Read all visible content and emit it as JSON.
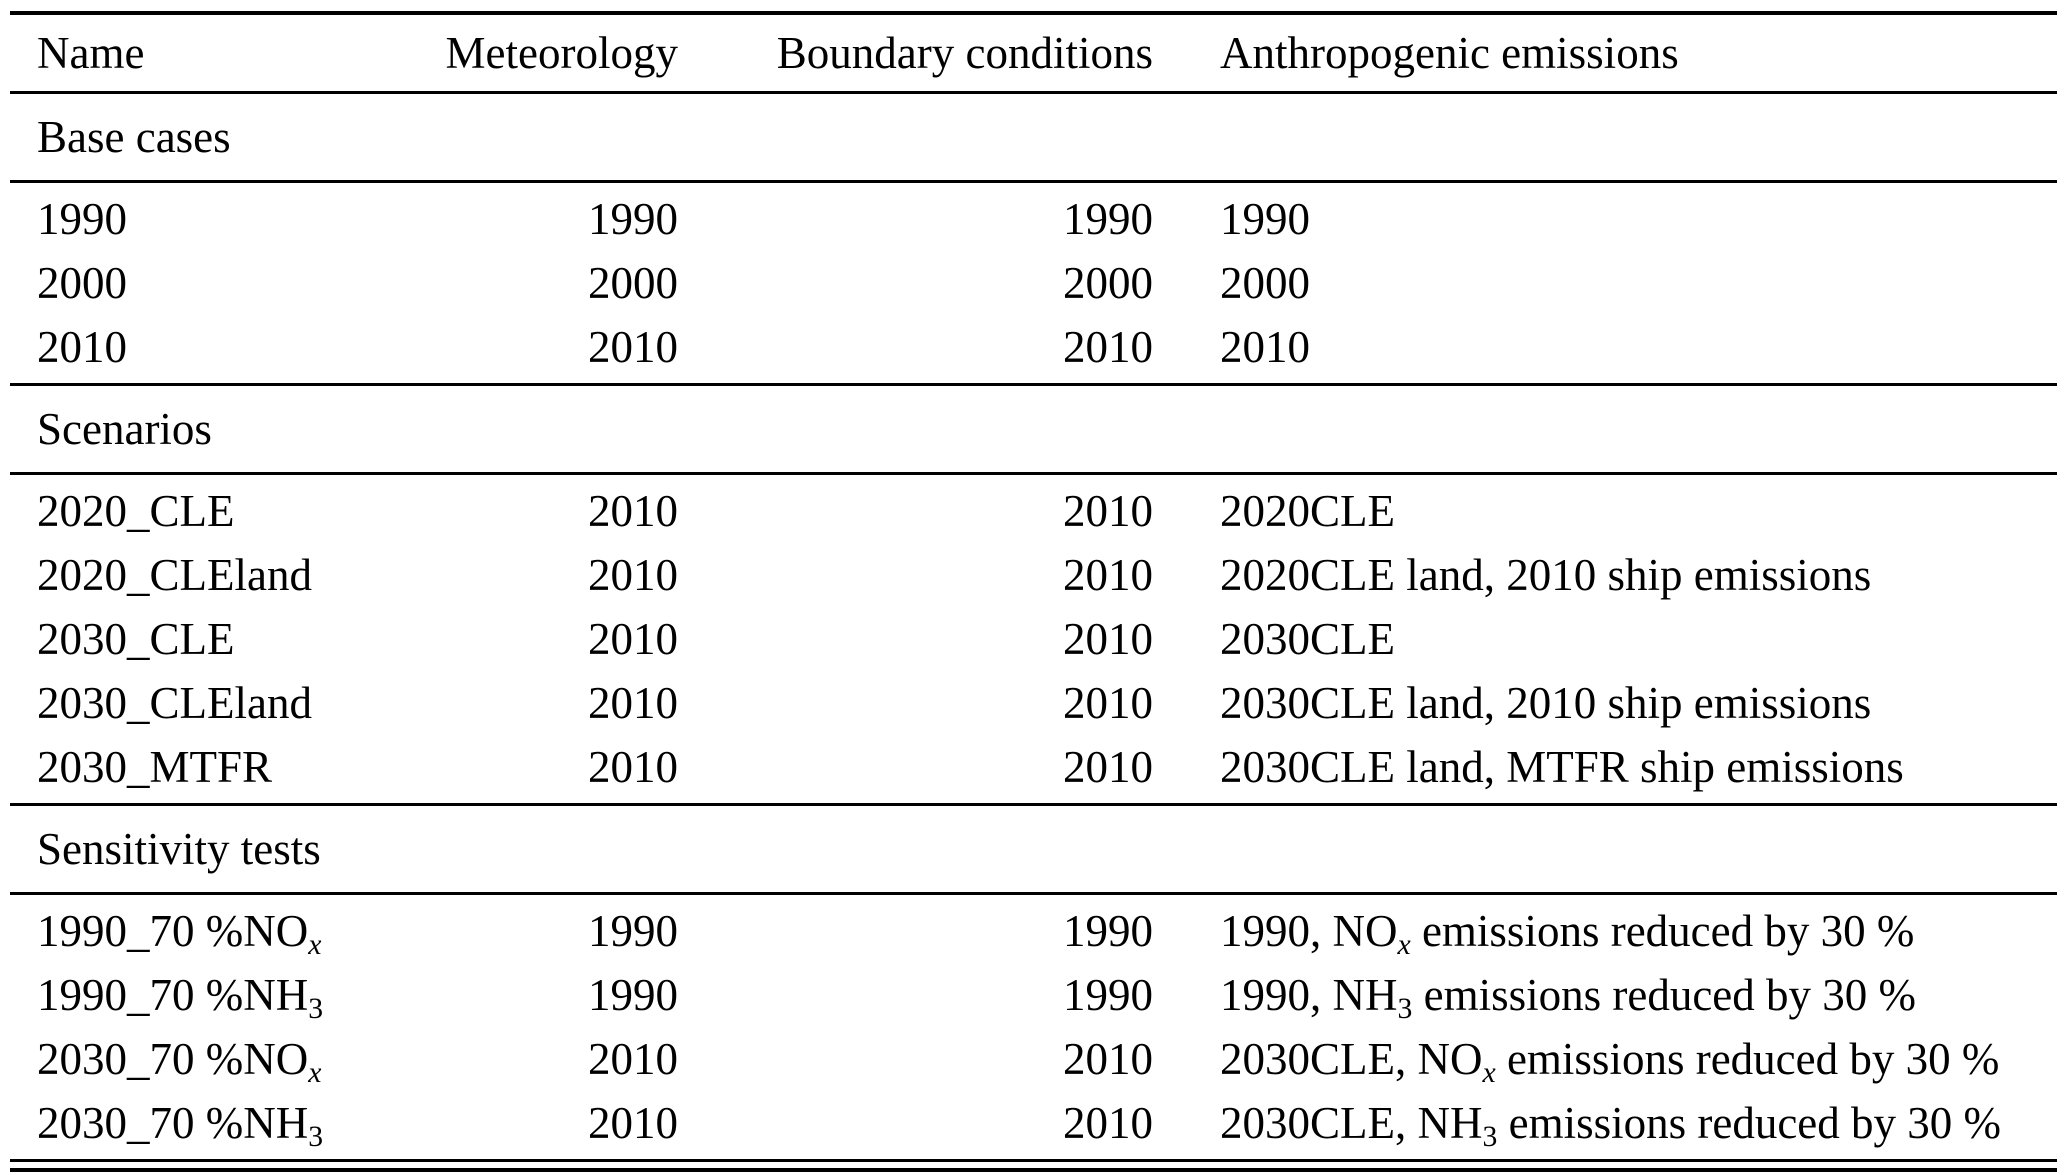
{
  "columns": [
    {
      "label": "Name",
      "align": "left"
    },
    {
      "label": "Meteorology",
      "align": "right"
    },
    {
      "label": "Boundary conditions",
      "align": "right"
    },
    {
      "label": "Anthropogenic emissions",
      "align": "left"
    }
  ],
  "sections": [
    {
      "title": "Base cases",
      "rows": [
        [
          "1990",
          "1990",
          "1990",
          "1990"
        ],
        [
          "2000",
          "2000",
          "2000",
          "2000"
        ],
        [
          "2010",
          "2010",
          "2010",
          "2010"
        ]
      ]
    },
    {
      "title": "Scenarios",
      "rows": [
        [
          "2020_CLE",
          "2010",
          "2010",
          "2020CLE"
        ],
        [
          "2020_CLEland",
          "2010",
          "2010",
          "2020CLE land, 2010 ship emissions"
        ],
        [
          "2030_CLE",
          "2010",
          "2010",
          "2030CLE"
        ],
        [
          "2030_CLEland",
          "2010",
          "2010",
          "2030CLE land, 2010 ship emissions"
        ],
        [
          "2030_MTFR",
          "2010",
          "2010",
          "2030CLE land, MTFR ship emissions"
        ]
      ]
    },
    {
      "title": "Sensitivity tests",
      "rows": [
        [
          [
            "1990_70 %NO",
            {
              "sub": "x",
              "italic": true
            }
          ],
          "1990",
          "1990",
          [
            "1990, NO",
            {
              "sub": "x",
              "italic": true
            },
            " emissions reduced by 30 %"
          ]
        ],
        [
          [
            "1990_70 %NH",
            {
              "sub": "3"
            }
          ],
          "1990",
          "1990",
          [
            "1990, NH",
            {
              "sub": "3"
            },
            " emissions reduced by 30 %"
          ]
        ],
        [
          [
            "2030_70 %NO",
            {
              "sub": "x",
              "italic": true
            }
          ],
          "2010",
          "2010",
          [
            "2030CLE, NO",
            {
              "sub": "x",
              "italic": true
            },
            " emissions reduced by 30 %"
          ]
        ],
        [
          [
            "2030_70 %NH",
            {
              "sub": "3"
            }
          ],
          "2010",
          "2010",
          [
            "2030CLE, NH",
            {
              "sub": "3"
            },
            " emissions reduced by 30 %"
          ]
        ]
      ]
    }
  ]
}
